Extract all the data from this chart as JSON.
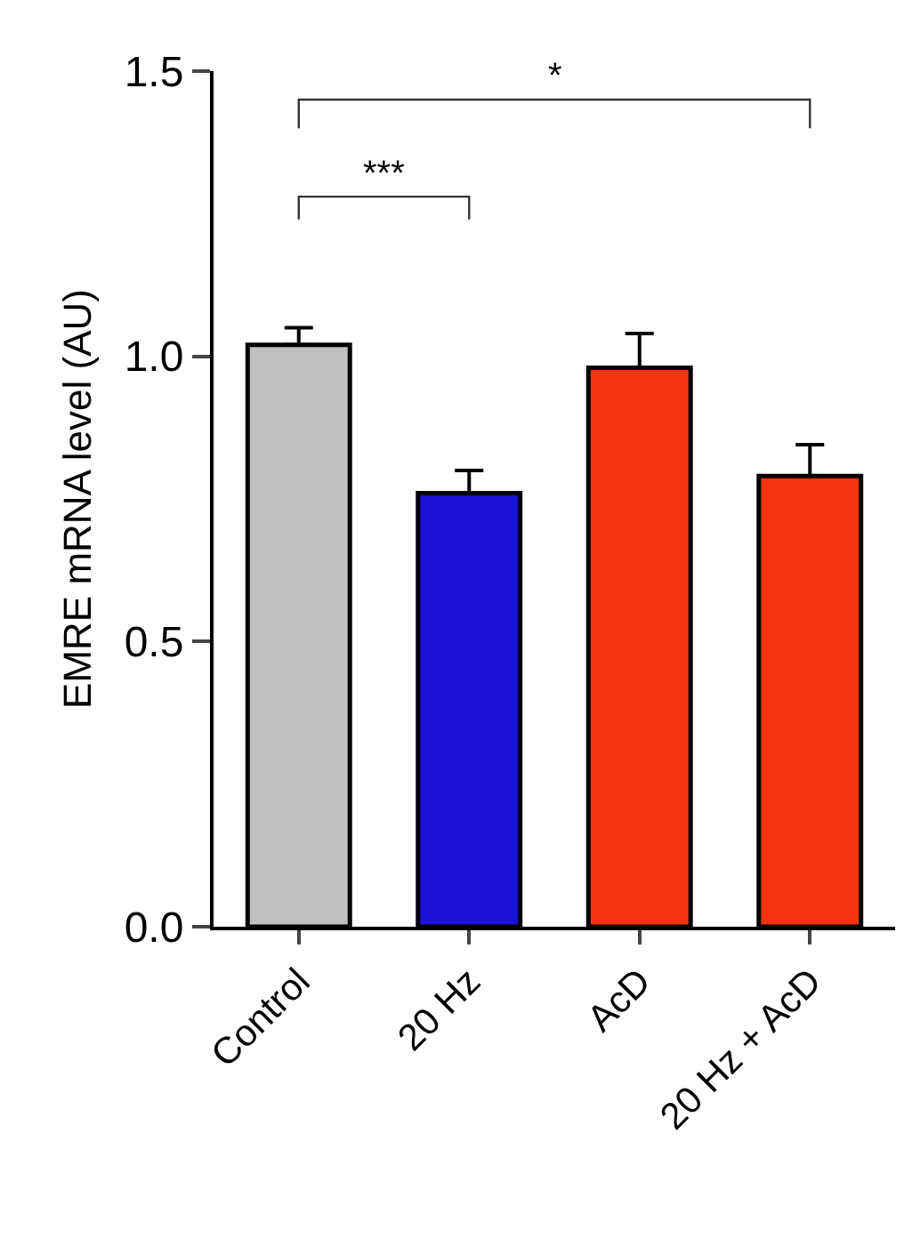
{
  "chart_data": {
    "type": "bar",
    "ylabel": "EMRE mRNA level (AU)",
    "categories": [
      "Control",
      "20 Hz",
      "AcD",
      "20 Hz + AcD"
    ],
    "values": [
      1.02,
      0.76,
      0.98,
      0.79
    ],
    "colors": [
      "#c0c0c0",
      "#1a12d4",
      "#f5320f",
      "#f5320f"
    ],
    "errors": [
      [
        1.02,
        1.05
      ],
      [
        0.76,
        0.8
      ],
      [
        0.98,
        1.04
      ],
      [
        0.79,
        0.845
      ]
    ],
    "ylim": [
      0,
      1.5
    ],
    "yticks": [
      {
        "value": 0,
        "label": "0.0"
      },
      {
        "value": 0.5,
        "label": "0.5"
      },
      {
        "value": 1,
        "label": "1.0"
      },
      {
        "value": 1.5,
        "label": "1.5"
      }
    ],
    "annotations": [
      "***",
      "*"
    ],
    "grid": false
  }
}
